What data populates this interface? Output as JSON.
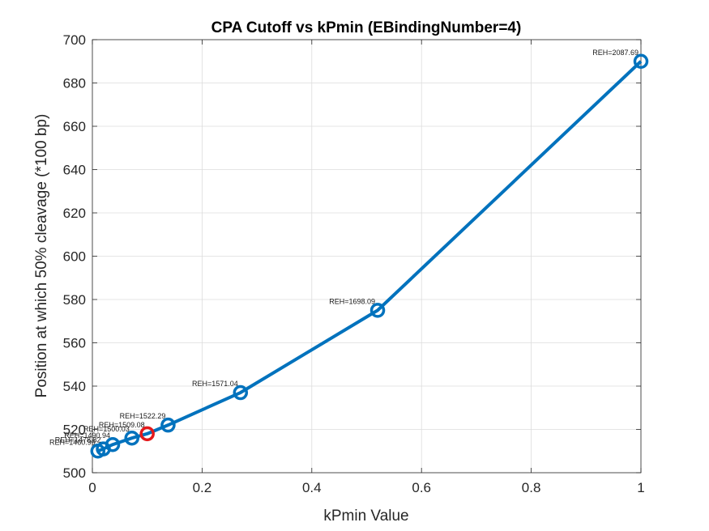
{
  "chart_data": {
    "type": "line",
    "title": "CPA Cutoff vs kPmin (EBindingNumber=4)",
    "xlabel": "kPmin Value",
    "ylabel": "Position at which 50% cleavage (*100 bp)",
    "xlim": [
      0,
      1
    ],
    "ylim": [
      500,
      700
    ],
    "xticks": [
      0,
      0.2,
      0.4,
      0.6,
      0.8,
      1
    ],
    "xtick_labels": [
      "0",
      "0.2",
      "0.4",
      "0.6",
      "0.8",
      "1"
    ],
    "yticks": [
      500,
      520,
      540,
      560,
      580,
      600,
      620,
      640,
      660,
      680,
      700
    ],
    "ytick_labels": [
      "500",
      "520",
      "540",
      "560",
      "580",
      "600",
      "620",
      "640",
      "660",
      "680",
      "700"
    ],
    "grid": true,
    "series": [
      {
        "color": "#0072BD",
        "marker": "circle",
        "x": [
          0.01,
          0.02,
          0.037,
          0.072,
          0.1,
          0.138,
          0.27,
          0.52,
          1.0
        ],
        "y": [
          510,
          511,
          513,
          516,
          518,
          522,
          537,
          575,
          690
        ],
        "labels": [
          "REH=1460.99",
          "REH=1478.82",
          "REH=1490.94",
          "REH=1500.03",
          "REH=1509.08",
          "REH=1522.29",
          "REH=1571.04",
          "REH=1698.09",
          "REH=2087.69"
        ],
        "highlight_index": 4,
        "highlight_color": "#E41A1C"
      }
    ]
  }
}
